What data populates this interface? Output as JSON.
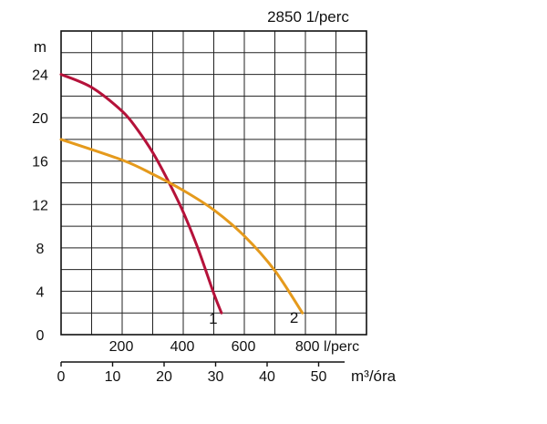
{
  "chart_data": {
    "type": "line",
    "header": "2850 1/perc",
    "y_axis": {
      "unit": "m",
      "ticks": [
        0,
        4,
        8,
        12,
        16,
        20,
        24
      ],
      "ylim": [
        0,
        28
      ]
    },
    "x_axis_flow": {
      "unit": "l/perc",
      "ticks": [
        "200",
        "400",
        "600",
        "800 l/perc"
      ],
      "xlim": [
        0,
        1000
      ]
    },
    "x_axis_m3": {
      "unit": "m³/óra",
      "ticks": [
        0,
        10,
        20,
        30,
        40,
        50
      ]
    },
    "grid": true,
    "series": [
      {
        "name": "1",
        "color": "#B5123A",
        "x": [
          0,
          100,
          200,
          250,
          300,
          350,
          400,
          450,
          500,
          525
        ],
        "y": [
          24,
          22.8,
          20.6,
          18.9,
          16.8,
          14.2,
          11.3,
          7.8,
          3.8,
          2.0
        ]
      },
      {
        "name": "2",
        "color": "#E59A1C",
        "x": [
          0,
          200,
          300,
          400,
          500,
          600,
          700,
          790
        ],
        "y": [
          18,
          16.1,
          14.8,
          13.3,
          11.5,
          9.1,
          5.9,
          2.0
        ]
      }
    ]
  }
}
